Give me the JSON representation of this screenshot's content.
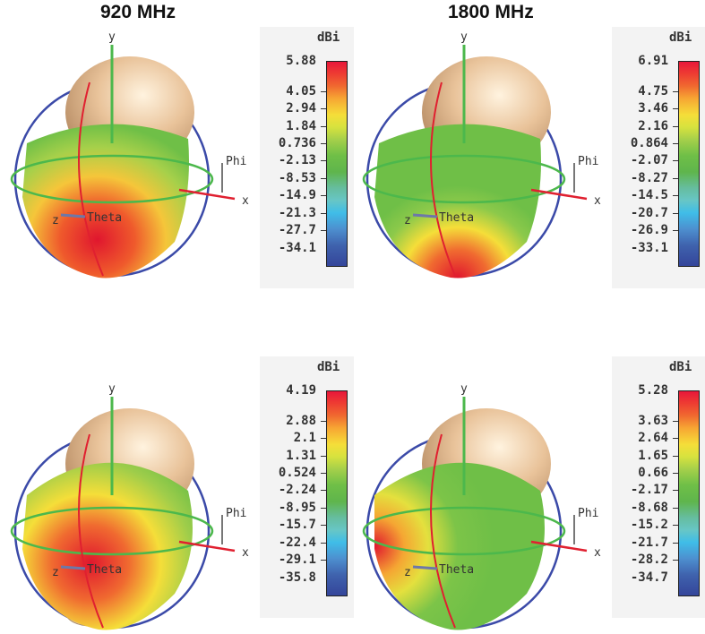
{
  "columns": [
    "920 MHz",
    "1800 MHz"
  ],
  "panels": [
    {
      "frequency": "920 MHz",
      "row": "top",
      "unit": "dBi",
      "scale": [
        "5.88",
        "4.05",
        "2.94",
        "1.84",
        "0.736",
        "-2.13",
        "-8.53",
        "-14.9",
        "-21.3",
        "-27.7",
        "-34.1"
      ],
      "axes": {
        "y": "y",
        "x": "x",
        "z": "z",
        "phi": "Phi",
        "theta": "Theta"
      }
    },
    {
      "frequency": "1800 MHz",
      "row": "top",
      "unit": "dBi",
      "scale": [
        "6.91",
        "4.75",
        "3.46",
        "2.16",
        "0.864",
        "-2.07",
        "-8.27",
        "-14.5",
        "-20.7",
        "-26.9",
        "-33.1"
      ],
      "axes": {
        "y": "y",
        "x": "x",
        "z": "z",
        "phi": "Phi",
        "theta": "Theta"
      }
    },
    {
      "frequency": "920 MHz",
      "row": "bottom",
      "unit": "dBi",
      "scale": [
        "4.19",
        "2.88",
        "2.1",
        "1.31",
        "0.524",
        "-2.24",
        "-8.95",
        "-15.7",
        "-22.4",
        "-29.1",
        "-35.8"
      ],
      "axes": {
        "y": "y",
        "x": "x",
        "z": "z",
        "phi": "Phi",
        "theta": "Theta"
      }
    },
    {
      "frequency": "1800 MHz",
      "row": "bottom",
      "unit": "dBi",
      "scale": [
        "5.28",
        "3.63",
        "2.64",
        "1.65",
        "0.66",
        "-2.17",
        "-8.68",
        "-15.2",
        "-21.7",
        "-28.2",
        "-34.7"
      ],
      "axes": {
        "y": "y",
        "x": "x",
        "z": "z",
        "phi": "Phi",
        "theta": "Theta"
      }
    }
  ],
  "colors": {
    "head": "#e9c39a",
    "max": "#e8173a",
    "mid": "#6fbf47",
    "min": "#34459a",
    "ring_theta": "#3b4aa8",
    "ring_phi": "#4cb84c",
    "meridian": "#e02030"
  }
}
